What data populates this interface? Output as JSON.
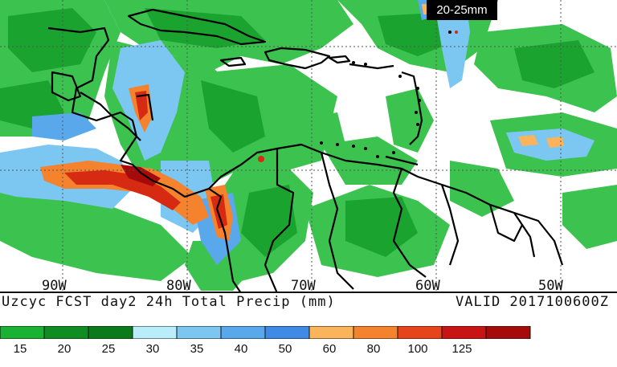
{
  "badge": {
    "label": "20-25mm"
  },
  "map": {
    "longitude_labels": [
      "90W",
      "80W",
      "70W",
      "60W",
      "50W"
    ]
  },
  "caption": {
    "left": "Uzcyc FCST day2 24h Total Precip (mm)",
    "right": "VALID 2017100600Z"
  },
  "legend": {
    "unit": "mm",
    "ticks": [
      "15",
      "20",
      "25",
      "30",
      "35",
      "40",
      "50",
      "60",
      "80",
      "100",
      "125"
    ],
    "colors": [
      "#19b232",
      "#0f8c22",
      "#0a7a1a",
      "#b9edfa",
      "#7cc7f2",
      "#5aa8ec",
      "#3f8ae4",
      "#fbb45c",
      "#f5822c",
      "#e6451c",
      "#c91414",
      "#a60b0b"
    ]
  },
  "colors": {
    "rain_light": "#3cc24f",
    "rain_medium": "#1aa42f",
    "rain_heavy": "#0f8c22",
    "blue_light": "#7cc7f2",
    "blue_medium": "#5aa8ec",
    "orange": "#f5822c",
    "red": "#d62a12",
    "dark_red": "#a60b0b",
    "borders": "#000000",
    "grid": "#555555"
  }
}
